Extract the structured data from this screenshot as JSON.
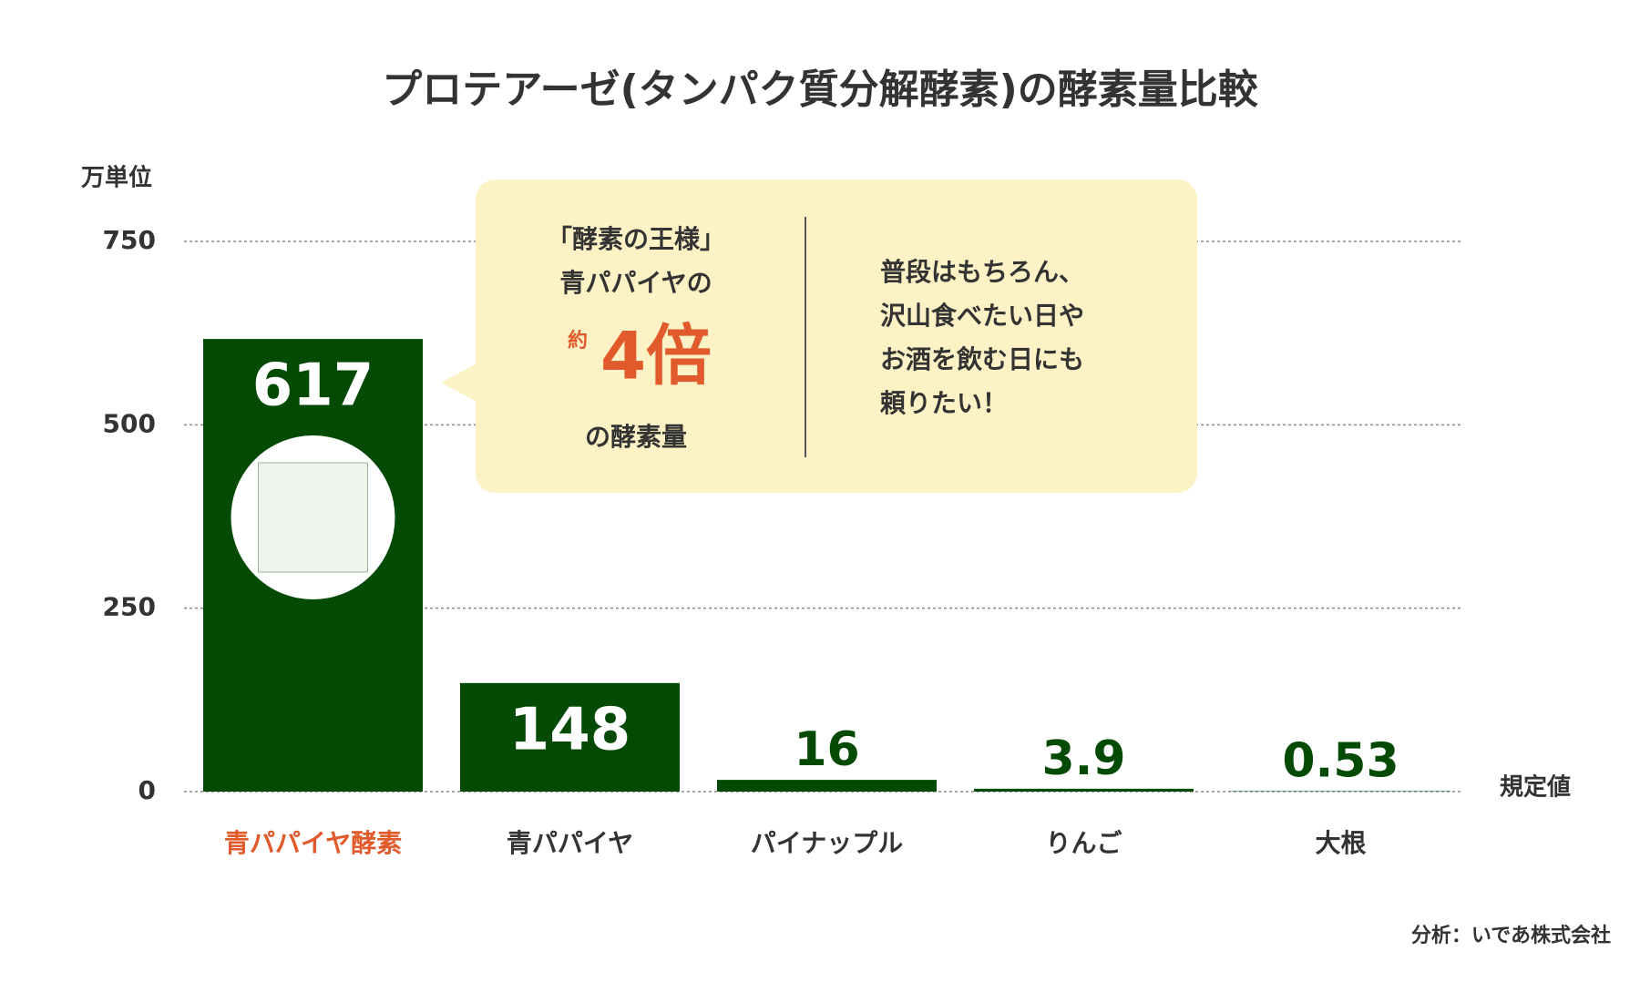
{
  "chart_data": {
    "type": "bar",
    "title": "プロテアーゼ(タンパク質分解酵素)の酵素量比較",
    "y_label": "万単位",
    "categories": [
      "青パパイヤ酵素",
      "青パパイヤ",
      "パイナップル",
      "りんご",
      "大根"
    ],
    "values": [
      617,
      148,
      16,
      3.9,
      0.53
    ],
    "color": "#034a05",
    "category_label_colors": [
      "#e05a2b",
      "#333333",
      "#333333",
      "#333333",
      "#333333"
    ],
    "ylim": [
      0,
      750
    ],
    "yticks": [
      0,
      250,
      500,
      750
    ],
    "grid": true,
    "baseline_label": "規定値",
    "callout": {
      "left_top": [
        "「酵素の王様」",
        "青パパイヤの"
      ],
      "prefix": "約",
      "emphasis": "4倍",
      "left_bottom": "の酵素量",
      "right": [
        "普段はもちろん、",
        "沢山食べたい日や",
        "お酒を飲む日にも",
        "頼りたい！"
      ]
    },
    "source": "分析：いであ株式会社"
  }
}
